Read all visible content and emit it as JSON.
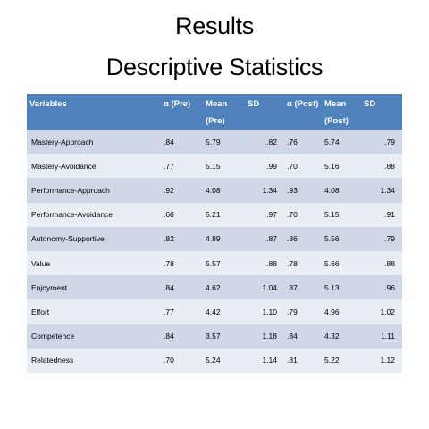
{
  "title_line1": "Results",
  "title_line2": "Descriptive Statistics",
  "table": {
    "headers": {
      "variables": "Variables",
      "alpha_pre": "α (Pre)",
      "mean_pre_line1": "Mean",
      "mean_pre_line2": "(Pre)",
      "sd_pre": "SD",
      "alpha_post": "α (Post)",
      "mean_post_line1": "Mean",
      "mean_post_line2": "(Post)",
      "sd_post": "SD"
    },
    "rows": [
      {
        "variable": "Mastery-Approach",
        "alpha_pre": ".84",
        "mean_pre": "5.79",
        "sd_pre": ".82",
        "alpha_post": ".76",
        "mean_post": "5.74",
        "sd_post": ".79"
      },
      {
        "variable": "Mastery-Avoidance",
        "alpha_pre": ".77",
        "mean_pre": "5.15",
        "sd_pre": ".99",
        "alpha_post": ".70",
        "mean_post": "5.16",
        "sd_post": ".88"
      },
      {
        "variable": "Performance-Approach",
        "alpha_pre": ".92",
        "mean_pre": "4.08",
        "sd_pre": "1.34",
        "alpha_post": ".93",
        "mean_post": "4.08",
        "sd_post": "1.34"
      },
      {
        "variable": "Performance-Avoidance",
        "alpha_pre": ".68",
        "mean_pre": "5.21",
        "sd_pre": ".97",
        "alpha_post": ".70",
        "mean_post": "5.15",
        "sd_post": ".91"
      },
      {
        "variable": "Autonomy-Supportive",
        "alpha_pre": ".82",
        "mean_pre": "4.89",
        "sd_pre": ".87",
        "alpha_post": ".86",
        "mean_post": "5.56",
        "sd_post": ".79"
      },
      {
        "variable": "Value",
        "alpha_pre": ".78",
        "mean_pre": "5.57",
        "sd_pre": ".88",
        "alpha_post": ".78",
        "mean_post": "5.66",
        "sd_post": ".88"
      },
      {
        "variable": "Enjoyment",
        "alpha_pre": ".84",
        "mean_pre": "4.62",
        "sd_pre": "1.04",
        "alpha_post": ".87",
        "mean_post": "5.13",
        "sd_post": ".96"
      },
      {
        "variable": "Effort",
        "alpha_pre": ".77",
        "mean_pre": "4.42",
        "sd_pre": "1.10",
        "alpha_post": ".79",
        "mean_post": "4.96",
        "sd_post": "1.02"
      },
      {
        "variable": "Competence",
        "alpha_pre": ".84",
        "mean_pre": "3.57",
        "sd_pre": "1.18",
        "alpha_post": ".84",
        "mean_post": "4.32",
        "sd_post": "1.11"
      },
      {
        "variable": "Relatedness",
        "alpha_pre": ".70",
        "mean_pre": "5.24",
        "sd_pre": "1.14",
        "alpha_post": ".81",
        "mean_post": "5.22",
        "sd_post": "1.12"
      }
    ]
  },
  "colors": {
    "header_bg": "#4f81bd",
    "header_text": "#ffffff",
    "row_odd": "#d0d8e8",
    "row_even": "#e9edf4"
  }
}
